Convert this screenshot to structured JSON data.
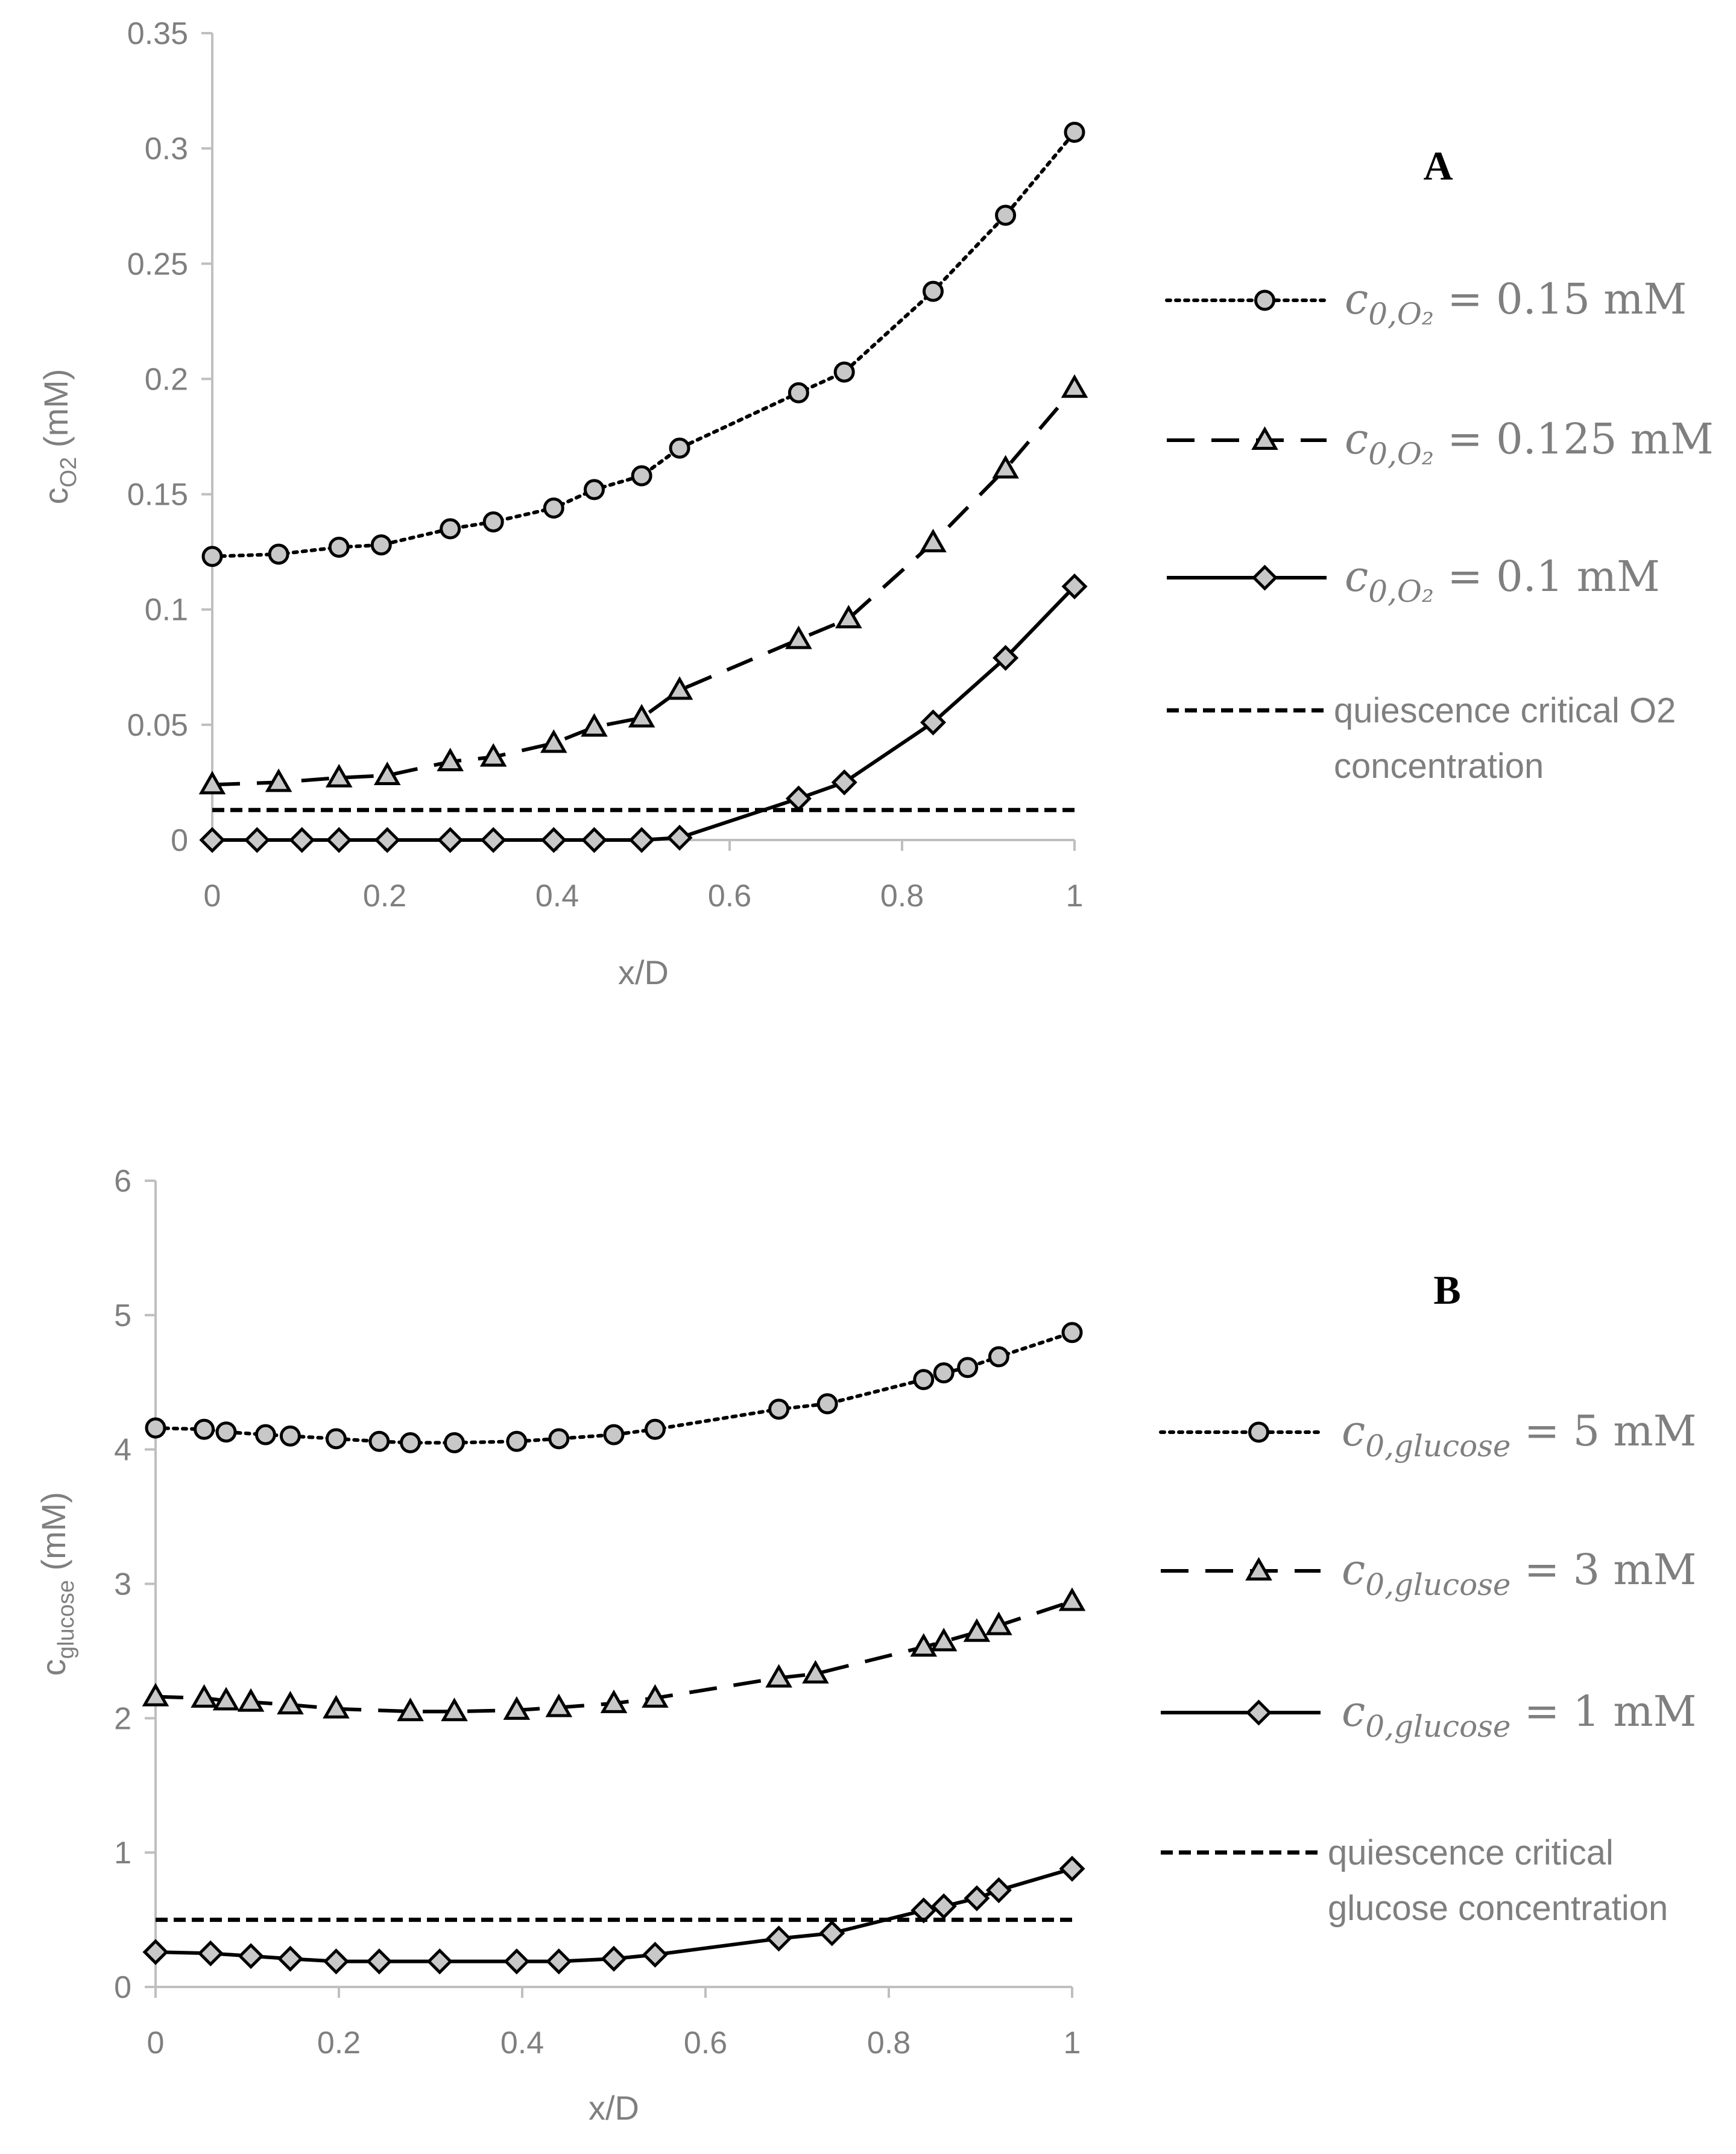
{
  "colors": {
    "axis": "#bfbfbf",
    "text": "#7f7f7f",
    "line": "#000000",
    "marker_fill": "#c8c8c8"
  },
  "chart_data": [
    {
      "type": "line",
      "panel_label": "A",
      "xlabel": "x/D",
      "ylabel": "c",
      "ylabel_sub": "O2",
      "ylabel_unit": "(mM)",
      "xlim": [
        0,
        1
      ],
      "ylim": [
        0,
        0.35
      ],
      "x_ticks": [
        "0",
        "0.2",
        "0.4",
        "0.6",
        "0.8",
        "1"
      ],
      "x_tick_values": [
        0,
        0.2,
        0.4,
        0.6,
        0.8,
        1
      ],
      "y_ticks": [
        "0",
        "0.05",
        "0.1",
        "0.15",
        "0.2",
        "0.25",
        "0.3",
        "0.35"
      ],
      "y_tick_values": [
        0,
        0.05,
        0.1,
        0.15,
        0.2,
        0.25,
        0.3,
        0.35
      ],
      "series": [
        {
          "name": "c0,O2 = 0.15 mM",
          "legend_main": "c",
          "legend_sub": "0,O₂",
          "legend_rest": " = 0.15 mM",
          "style": "dotted",
          "marker": "circle",
          "x": [
            0,
            0.077,
            0.147,
            0.196,
            0.276,
            0.326,
            0.396,
            0.443,
            0.498,
            0.542,
            0.68,
            0.733,
            0.836,
            0.92,
            1.0
          ],
          "y": [
            0.123,
            0.124,
            0.127,
            0.128,
            0.135,
            0.138,
            0.144,
            0.152,
            0.158,
            0.17,
            0.194,
            0.203,
            0.238,
            0.271,
            0.307
          ]
        },
        {
          "name": "c0,O2 = 0.125 mM",
          "legend_main": "c",
          "legend_sub": "0,O₂",
          "legend_rest": " = 0.125 mM",
          "style": "dashed",
          "marker": "triangle",
          "x": [
            0,
            0.077,
            0.147,
            0.203,
            0.276,
            0.326,
            0.396,
            0.443,
            0.498,
            0.542,
            0.68,
            0.738,
            0.836,
            0.92,
            1.0
          ],
          "y": [
            0.024,
            0.025,
            0.027,
            0.028,
            0.034,
            0.036,
            0.042,
            0.049,
            0.053,
            0.065,
            0.087,
            0.096,
            0.129,
            0.161,
            0.196
          ]
        },
        {
          "name": "c0,O2 = 0.1 mM",
          "legend_main": "c",
          "legend_sub": "0,O₂",
          "legend_rest": " = 0.1 mM",
          "style": "solid",
          "marker": "diamond",
          "x": [
            0,
            0.052,
            0.104,
            0.147,
            0.203,
            0.276,
            0.326,
            0.396,
            0.443,
            0.498,
            0.542,
            0.68,
            0.733,
            0.836,
            0.92,
            1.0
          ],
          "y": [
            0,
            0,
            0,
            0,
            0,
            0,
            0,
            0,
            0,
            0,
            0.001,
            0.018,
            0.025,
            0.051,
            0.079,
            0.11
          ]
        },
        {
          "name": "quiescence critical O2 concentration",
          "legend_lines": [
            "quiescence critical O2",
            "concentration"
          ],
          "style": "short-dash",
          "marker": "none",
          "x": [
            0,
            1.0
          ],
          "y": [
            0.013,
            0.013
          ]
        }
      ]
    },
    {
      "type": "line",
      "panel_label": "B",
      "xlabel": "x/D",
      "ylabel": "c",
      "ylabel_sub": "glucose",
      "ylabel_unit": "(mM)",
      "xlim": [
        0,
        1
      ],
      "ylim": [
        0,
        6
      ],
      "x_ticks": [
        "0",
        "0.2",
        "0.4",
        "0.6",
        "0.8",
        "1"
      ],
      "x_tick_values": [
        0,
        0.2,
        0.4,
        0.6,
        0.8,
        1
      ],
      "y_ticks": [
        "0",
        "1",
        "2",
        "3",
        "4",
        "5",
        "6"
      ],
      "y_tick_values": [
        0,
        1,
        2,
        3,
        4,
        5,
        6
      ],
      "series": [
        {
          "name": "c0,glucose = 5 mM",
          "legend_main": "c",
          "legend_sub": "0,glucose",
          "legend_rest": " = 5 mM",
          "style": "dotted",
          "marker": "circle",
          "x": [
            0,
            0.053,
            0.077,
            0.12,
            0.147,
            0.197,
            0.244,
            0.278,
            0.326,
            0.394,
            0.44,
            0.5,
            0.545,
            0.68,
            0.733,
            0.838,
            0.86,
            0.886,
            0.92,
            1.0
          ],
          "y": [
            4.16,
            4.15,
            4.13,
            4.11,
            4.1,
            4.08,
            4.06,
            4.05,
            4.05,
            4.06,
            4.08,
            4.11,
            4.15,
            4.3,
            4.34,
            4.52,
            4.57,
            4.61,
            4.69,
            4.87
          ]
        },
        {
          "name": "c0,glucose = 3 mM",
          "legend_main": "c",
          "legend_sub": "0,glucose",
          "legend_rest": " = 3 mM",
          "style": "dashed",
          "marker": "triangle",
          "x": [
            0,
            0.053,
            0.077,
            0.104,
            0.147,
            0.197,
            0.278,
            0.326,
            0.394,
            0.44,
            0.5,
            0.545,
            0.68,
            0.72,
            0.838,
            0.86,
            0.896,
            0.92,
            1.0
          ],
          "y": [
            2.16,
            2.15,
            2.13,
            2.12,
            2.1,
            2.07,
            2.05,
            2.05,
            2.06,
            2.08,
            2.11,
            2.15,
            2.3,
            2.33,
            2.53,
            2.57,
            2.64,
            2.69,
            2.87
          ]
        },
        {
          "name": "c0,glucose = 1 mM",
          "legend_main": "c",
          "legend_sub": "0,glucose",
          "legend_rest": " = 1 mM",
          "style": "solid",
          "marker": "diamond",
          "x": [
            0,
            0.06,
            0.104,
            0.147,
            0.197,
            0.244,
            0.31,
            0.394,
            0.44,
            0.5,
            0.545,
            0.68,
            0.738,
            0.838,
            0.86,
            0.896,
            0.92,
            1.0
          ],
          "y": [
            0.26,
            0.25,
            0.23,
            0.21,
            0.19,
            0.19,
            0.19,
            0.19,
            0.19,
            0.21,
            0.24,
            0.36,
            0.4,
            0.57,
            0.6,
            0.66,
            0.72,
            0.88
          ]
        },
        {
          "name": "quiescence critical glucose concentration",
          "legend_lines": [
            "quiescence critical",
            "glucose concentration"
          ],
          "style": "short-dash",
          "marker": "none",
          "x": [
            0,
            1.0
          ],
          "y": [
            0.5,
            0.5
          ]
        }
      ]
    }
  ]
}
